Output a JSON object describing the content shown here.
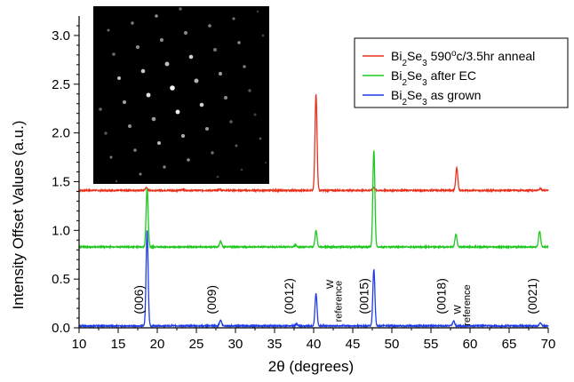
{
  "chart_data": {
    "type": "line",
    "xlabel": "2θ (degrees)",
    "ylabel": "Intensity Offset Values  (a.u.)",
    "xlim": [
      10,
      70
    ],
    "ylim": [
      0,
      3.2
    ],
    "xticks": [
      10,
      15,
      20,
      25,
      30,
      35,
      40,
      45,
      50,
      55,
      60,
      65,
      70
    ],
    "yticks": [
      0.0,
      0.5,
      1.0,
      1.5,
      2.0,
      2.5,
      3.0
    ],
    "ytick_labels": [
      "0.0",
      "0.5",
      "1.0",
      "1.5",
      "2.0",
      "2.5",
      "3.0"
    ],
    "legend_position": "top-right",
    "legend_box_color": "#000000",
    "series": [
      {
        "name": "Bi2Se3 590oc/3.5hr anneal",
        "legend_parts": [
          [
            "Bi",
            ""
          ],
          [
            "2",
            "sub"
          ],
          [
            "Se",
            ""
          ],
          [
            "3",
            "sub"
          ],
          [
            " 590",
            ""
          ],
          [
            "o",
            "sup"
          ],
          [
            "c/3.5hr anneal",
            ""
          ]
        ],
        "color": "#e8321e",
        "baseline": 1.41,
        "peaks": [
          {
            "x": 18.6,
            "y": 1.44
          },
          {
            "x": 23.2,
            "y": 1.42
          },
          {
            "x": 28.0,
            "y": 1.42
          },
          {
            "x": 40.3,
            "y": 2.4
          },
          {
            "x": 47.7,
            "y": 1.44
          },
          {
            "x": 58.3,
            "y": 1.64
          },
          {
            "x": 69.0,
            "y": 1.43
          }
        ]
      },
      {
        "name": "Bi2Se3 after EC",
        "legend_parts": [
          [
            "Bi",
            ""
          ],
          [
            "2",
            "sub"
          ],
          [
            "Se",
            ""
          ],
          [
            "3",
            "sub"
          ],
          [
            " after EC",
            ""
          ]
        ],
        "color": "#1ec81e",
        "baseline": 0.83,
        "peaks": [
          {
            "x": 18.7,
            "y": 1.43
          },
          {
            "x": 28.1,
            "y": 0.89
          },
          {
            "x": 37.7,
            "y": 0.85
          },
          {
            "x": 40.3,
            "y": 1.0
          },
          {
            "x": 47.7,
            "y": 1.82
          },
          {
            "x": 58.2,
            "y": 0.96
          },
          {
            "x": 68.9,
            "y": 0.99
          }
        ]
      },
      {
        "name": "Bi2Se3 as grown",
        "legend_parts": [
          [
            "Bi",
            ""
          ],
          [
            "2",
            "sub"
          ],
          [
            "Se",
            ""
          ],
          [
            "3",
            "sub"
          ],
          [
            " as grown",
            ""
          ]
        ],
        "color": "#1e3ce8",
        "baseline": 0.02,
        "peaks": [
          {
            "x": 18.7,
            "y": 1.0
          },
          {
            "x": 28.1,
            "y": 0.08
          },
          {
            "x": 37.8,
            "y": 0.04
          },
          {
            "x": 40.3,
            "y": 0.35
          },
          {
            "x": 47.7,
            "y": 0.6
          },
          {
            "x": 57.9,
            "y": 0.07
          },
          {
            "x": 69.0,
            "y": 0.05
          }
        ]
      }
    ],
    "annotations": [
      {
        "text": "(006)",
        "x": 18.2,
        "y": 0.14,
        "kind": "peak"
      },
      {
        "text": "(009)",
        "x": 27.5,
        "y": 0.14,
        "kind": "peak"
      },
      {
        "text": "(0012)",
        "x": 37.4,
        "y": 0.14,
        "kind": "peak"
      },
      {
        "text": "W",
        "x": 42.5,
        "y": 0.4,
        "kind": "ref-top"
      },
      {
        "text": "reference",
        "x": 43.6,
        "y": 0.06,
        "kind": "ref"
      },
      {
        "text": "(0015)",
        "x": 47.0,
        "y": 0.14,
        "kind": "peak"
      },
      {
        "text": "(0018)",
        "x": 56.9,
        "y": 0.14,
        "kind": "peak"
      },
      {
        "text": "W",
        "x": 58.8,
        "y": 0.14,
        "kind": "ref-top"
      },
      {
        "text": "reference",
        "x": 60.0,
        "y": 0.02,
        "kind": "ref"
      },
      {
        "text": "(0021)",
        "x": 68.5,
        "y": 0.14,
        "kind": "peak"
      }
    ],
    "inset": {
      "content": "electron diffraction pattern",
      "background": "#000000",
      "spot_color": "#ffffff"
    }
  }
}
